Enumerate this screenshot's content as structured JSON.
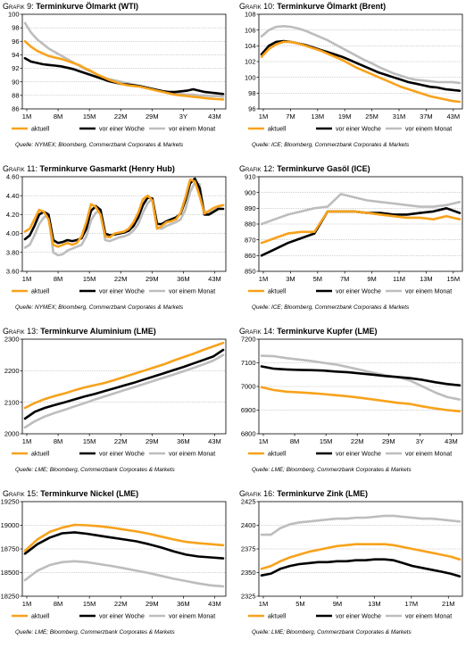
{
  "series_colors": {
    "aktuell": "#f7a21b",
    "vor einer Woche": "#000000",
    "vor einem Monat": "#bdbdbd"
  },
  "legend_labels": [
    "aktuell",
    "vor einer Woche",
    "vor einem Monat"
  ],
  "charts": [
    {
      "id": "g9",
      "number_label": "Grafik 9:",
      "title": "Terminkurve Ölmarkt (WTI)",
      "source": "Quelle: NYMEX; Bloomberg, Commerzbank Corporates & Markets",
      "chart_data": {
        "type": "line",
        "x_ticks": [
          "1M",
          "8M",
          "15M",
          "22M",
          "29M",
          "3Y",
          "43M"
        ],
        "y_ticks": [
          86,
          88,
          90,
          92,
          94,
          96,
          98,
          100
        ],
        "ylim": [
          86,
          100
        ],
        "series": [
          {
            "name": "aktuell",
            "values": [
              96.0,
              95.2,
              94.6,
              94.2,
              93.8,
              93.6,
              93.4,
              93.1,
              92.8,
              92.5,
              92.0,
              91.6,
              91.1,
              90.7,
              90.3,
              90.0,
              89.7,
              89.5,
              89.4,
              89.3,
              89.1,
              88.9,
              88.7,
              88.5,
              88.3,
              88.1,
              88.0,
              87.9,
              87.8,
              87.7,
              87.6,
              87.5,
              87.45,
              87.4
            ]
          },
          {
            "name": "vor einer Woche",
            "values": [
              93.5,
              93.0,
              92.8,
              92.6,
              92.5,
              92.4,
              92.3,
              92.1,
              91.9,
              91.6,
              91.3,
              91.0,
              90.7,
              90.4,
              90.1,
              89.9,
              89.7,
              89.6,
              89.5,
              89.4,
              89.2,
              89.0,
              88.8,
              88.6,
              88.5,
              88.5,
              88.6,
              88.7,
              88.9,
              88.7,
              88.5,
              88.4,
              88.3,
              88.2
            ]
          },
          {
            "name": "vor einem Monat",
            "values": [
              98.7,
              97.3,
              96.3,
              95.6,
              94.9,
              94.4,
              93.9,
              93.4,
              92.9,
              92.4,
              91.9,
              91.5,
              91.1,
              90.7,
              90.4,
              90.2,
              90.0,
              89.8,
              89.6,
              89.4,
              89.2,
              89.0,
              88.8,
              88.6,
              88.4,
              88.3,
              88.2,
              88.1,
              88.1,
              88.0,
              88.0,
              87.9,
              87.9,
              87.8
            ]
          }
        ]
      }
    },
    {
      "id": "g10",
      "number_label": "Grafik 10:",
      "title": "Terminkurve Ölmarkt (Brent)",
      "source": "Quelle: ICE; Bloomberg, Commerzbank Corporates & Markets",
      "chart_data": {
        "type": "line",
        "x_ticks": [
          "1M",
          "7M",
          "13M",
          "19M",
          "25M",
          "31M",
          "37M",
          "43M"
        ],
        "y_ticks": [
          96,
          98,
          100,
          102,
          104,
          106,
          108
        ],
        "ylim": [
          96,
          108
        ],
        "series": [
          {
            "name": "aktuell",
            "values": [
              102.6,
              103.6,
              104.2,
              104.5,
              104.5,
              104.3,
              104.0,
              103.7,
              103.4,
              103.0,
              102.6,
              102.2,
              101.7,
              101.2,
              100.8,
              100.4,
              100.0,
              99.6,
              99.2,
              98.8,
              98.5,
              98.2,
              97.9,
              97.6,
              97.4,
              97.2,
              97.0,
              96.9
            ]
          },
          {
            "name": "vor einer Woche",
            "values": [
              102.9,
              104.0,
              104.5,
              104.6,
              104.5,
              104.3,
              104.1,
              103.8,
              103.5,
              103.2,
              102.9,
              102.6,
              102.2,
              101.8,
              101.4,
              101.0,
              100.6,
              100.3,
              100.0,
              99.7,
              99.4,
              99.2,
              99.0,
              98.8,
              98.7,
              98.5,
              98.4,
              98.3
            ]
          },
          {
            "name": "vor einem Monat",
            "values": [
              105.2,
              106.0,
              106.4,
              106.5,
              106.4,
              106.2,
              105.9,
              105.5,
              105.1,
              104.7,
              104.2,
              103.7,
              103.2,
              102.7,
              102.2,
              101.8,
              101.3,
              100.9,
              100.5,
              100.2,
              99.9,
              99.7,
              99.6,
              99.5,
              99.4,
              99.4,
              99.4,
              99.3
            ]
          }
        ]
      }
    },
    {
      "id": "g11",
      "number_label": "Grafik 11:",
      "title": "Terminkurve Gasmarkt (Henry Hub)",
      "source": "Quelle: NYMEX; Bloomberg, Commerzbank Corporates & Markets",
      "chart_data": {
        "type": "line",
        "x_ticks": [
          "1M",
          "8M",
          "15M",
          "22M",
          "29M",
          "36M",
          "43M"
        ],
        "y_ticks": [
          "3.60",
          "3.80",
          "4.00",
          "4.20",
          "4.40",
          "4.60"
        ],
        "ylim": [
          3.6,
          4.6
        ],
        "series": [
          {
            "name": "aktuell",
            "values": [
              4.02,
              4.05,
              4.15,
              4.25,
              4.23,
              4.15,
              3.88,
              3.86,
              3.88,
              3.9,
              3.88,
              3.9,
              3.97,
              4.12,
              4.31,
              4.28,
              4.2,
              3.97,
              3.96,
              4.0,
              4.01,
              4.02,
              4.05,
              4.12,
              4.22,
              4.36,
              4.4,
              4.35,
              4.05,
              4.08,
              4.12,
              4.13,
              4.15,
              4.22,
              4.38,
              4.57,
              4.55,
              4.4,
              4.21,
              4.24,
              4.27,
              4.29,
              4.3
            ]
          },
          {
            "name": "vor einer Woche",
            "values": [
              3.94,
              3.98,
              4.08,
              4.2,
              4.23,
              4.2,
              3.93,
              3.9,
              3.91,
              3.93,
              3.92,
              3.93,
              3.95,
              4.05,
              4.24,
              4.29,
              4.25,
              4.0,
              3.98,
              3.99,
              4.0,
              4.01,
              4.03,
              4.08,
              4.17,
              4.3,
              4.38,
              4.37,
              4.1,
              4.1,
              4.13,
              4.15,
              4.17,
              4.21,
              4.35,
              4.53,
              4.58,
              4.48,
              4.2,
              4.2,
              4.23,
              4.26,
              4.26
            ]
          },
          {
            "name": "vor einem Monat",
            "values": [
              3.85,
              3.88,
              3.98,
              4.1,
              4.17,
              4.19,
              3.8,
              3.77,
              3.78,
              3.82,
              3.84,
              3.86,
              3.88,
              3.97,
              4.14,
              4.22,
              4.24,
              3.93,
              3.92,
              3.94,
              3.96,
              3.97,
              3.99,
              4.03,
              4.1,
              4.22,
              4.32,
              4.37,
              4.06,
              4.05,
              4.08,
              4.1,
              4.12,
              4.15,
              4.25,
              4.44,
              4.54,
              4.52,
              4.23,
              4.22,
              4.25,
              4.28,
              4.3
            ]
          }
        ]
      }
    },
    {
      "id": "g12",
      "number_label": "Grafik 12:",
      "title": "Terminkurve Gasöl (ICE)",
      "source": "Quelle: ICE; Bloomberg, Commerzbank Corporates & Markets",
      "chart_data": {
        "type": "line",
        "x_ticks": [
          "1M",
          "3M",
          "5M",
          "7M",
          "9M",
          "11M",
          "13M",
          "15M"
        ],
        "y_ticks": [
          850,
          860,
          870,
          880,
          890,
          900,
          910
        ],
        "ylim": [
          850,
          910
        ],
        "series": [
          {
            "name": "aktuell",
            "values": [
              868,
              871,
              874,
              875,
              875,
              888,
              888,
              888,
              887,
              886,
              885,
              884,
              884,
              883,
              885,
              883
            ]
          },
          {
            "name": "vor einer Woche",
            "values": [
              860,
              864,
              868,
              871,
              874,
              888,
              888,
              888,
              887,
              887,
              886,
              886,
              887,
              888,
              890,
              887
            ]
          },
          {
            "name": "vor einem Monat",
            "values": [
              880,
              883,
              886,
              888,
              890,
              891,
              899,
              897,
              895,
              894,
              893,
              892,
              891,
              891,
              892,
              894
            ]
          }
        ]
      }
    },
    {
      "id": "g13",
      "number_label": "Grafik 13:",
      "title": "Terminkurve Aluminium (LME)",
      "source": "Quelle: LME; Bloomberg, Commerzbank Corporates & Markets",
      "chart_data": {
        "type": "line",
        "x_ticks": [
          "1M",
          "8M",
          "15M",
          "22M",
          "29M",
          "36M",
          "43M"
        ],
        "y_ticks": [
          2000,
          2100,
          2200,
          2300
        ],
        "ylim": [
          2000,
          2300
        ],
        "series": [
          {
            "name": "aktuell",
            "values": [
              2082,
              2098,
              2110,
              2120,
              2128,
              2138,
              2147,
              2154,
              2161,
              2170,
              2180,
              2190,
              2200,
              2210,
              2220,
              2232,
              2243,
              2254,
              2266,
              2277,
              2288
            ]
          },
          {
            "name": "vor einer Woche",
            "values": [
              2048,
              2070,
              2082,
              2091,
              2100,
              2109,
              2118,
              2126,
              2135,
              2144,
              2153,
              2162,
              2172,
              2182,
              2192,
              2202,
              2212,
              2223,
              2234,
              2245,
              2266
            ]
          },
          {
            "name": "vor einem Monat",
            "values": [
              2020,
              2040,
              2055,
              2066,
              2076,
              2087,
              2097,
              2108,
              2118,
              2128,
              2138,
              2148,
              2158,
              2168,
              2178,
              2188,
              2198,
              2209,
              2220,
              2232,
              2250
            ]
          }
        ]
      }
    },
    {
      "id": "g14",
      "number_label": "Grafik 14:",
      "title": "Terminkurve Kupfer (LME)",
      "source": "Quelle: LME; Bloomberg, Commerzbank Corporates & Markets",
      "chart_data": {
        "type": "line",
        "x_ticks": [
          "1M",
          "8M",
          "15M",
          "22M",
          "29M",
          "3Y",
          "43M"
        ],
        "y_ticks": [
          6800,
          6900,
          7000,
          7100,
          7200
        ],
        "ylim": [
          6800,
          7200
        ],
        "series": [
          {
            "name": "aktuell",
            "values": [
              6997,
              6985,
              6978,
              6975,
              6972,
              6968,
              6963,
              6958,
              6952,
              6945,
              6938,
              6931,
              6926,
              6916,
              6907,
              6900,
              6895
            ]
          },
          {
            "name": "vor einer Woche",
            "values": [
              7085,
              7075,
              7072,
              7070,
              7069,
              7067,
              7063,
              7060,
              7055,
              7050,
              7044,
              7040,
              7035,
              7028,
              7018,
              7010,
              7005
            ]
          },
          {
            "name": "vor einem Monat",
            "values": [
              7130,
              7128,
              7120,
              7114,
              7108,
              7100,
              7093,
              7082,
              7070,
              7058,
              7047,
              7040,
              7025,
              7000,
              6975,
              6955,
              6945
            ]
          }
        ]
      }
    },
    {
      "id": "g15",
      "number_label": "Grafik 15:",
      "title": "Terminkurve Nickel (LME)",
      "source": "Quelle: LME; Bloomberg, Commerzbank Corporates & Markets",
      "chart_data": {
        "type": "line",
        "x_ticks": [
          "1M",
          "8M",
          "15M",
          "22M",
          "29M",
          "36M",
          "43M"
        ],
        "y_ticks": [
          18250,
          18500,
          18750,
          19000,
          19250
        ],
        "ylim": [
          18250,
          19250
        ],
        "series": [
          {
            "name": "aktuell",
            "values": [
              18730,
              18850,
              18930,
              18975,
              19005,
              19000,
              18990,
              18975,
              18955,
              18935,
              18910,
              18880,
              18850,
              18825,
              18810,
              18800,
              18790
            ]
          },
          {
            "name": "vor einer Woche",
            "values": [
              18700,
              18800,
              18870,
              18915,
              18925,
              18910,
              18890,
              18870,
              18850,
              18830,
              18800,
              18765,
              18725,
              18690,
              18670,
              18660,
              18650
            ]
          },
          {
            "name": "vor einem Monat",
            "values": [
              18420,
              18520,
              18580,
              18610,
              18620,
              18610,
              18590,
              18570,
              18545,
              18520,
              18495,
              18465,
              18435,
              18410,
              18385,
              18365,
              18355
            ]
          }
        ]
      }
    },
    {
      "id": "g16",
      "number_label": "Grafik 16:",
      "title": "Terminkurve Zink (LME)",
      "source": "Quelle: LME; Bloomberg, Commerzbank Corporates & Markets",
      "chart_data": {
        "type": "line",
        "x_ticks": [
          "1M",
          "5M",
          "9M",
          "13M",
          "17M",
          "21M"
        ],
        "y_ticks": [
          2325,
          2350,
          2375,
          2400,
          2425
        ],
        "ylim": [
          2325,
          2425
        ],
        "series": [
          {
            "name": "aktuell",
            "values": [
              2354,
              2357,
              2362,
              2366,
              2369,
              2372,
              2374,
              2376,
              2378,
              2379,
              2380,
              2380,
              2380,
              2380,
              2379,
              2377,
              2375,
              2373,
              2371,
              2369,
              2367,
              2364
            ]
          },
          {
            "name": "vor einer Woche",
            "values": [
              2347,
              2349,
              2354,
              2357,
              2359,
              2360,
              2361,
              2361,
              2362,
              2362,
              2363,
              2363,
              2364,
              2364,
              2363,
              2360,
              2357,
              2355,
              2353,
              2351,
              2349,
              2346
            ]
          },
          {
            "name": "vor einem Monat",
            "values": [
              2390,
              2390,
              2397,
              2401,
              2403,
              2404,
              2405,
              2406,
              2407,
              2407,
              2408,
              2408,
              2409,
              2410,
              2410,
              2409,
              2408,
              2407,
              2407,
              2406,
              2405,
              2404
            ]
          }
        ]
      }
    }
  ]
}
